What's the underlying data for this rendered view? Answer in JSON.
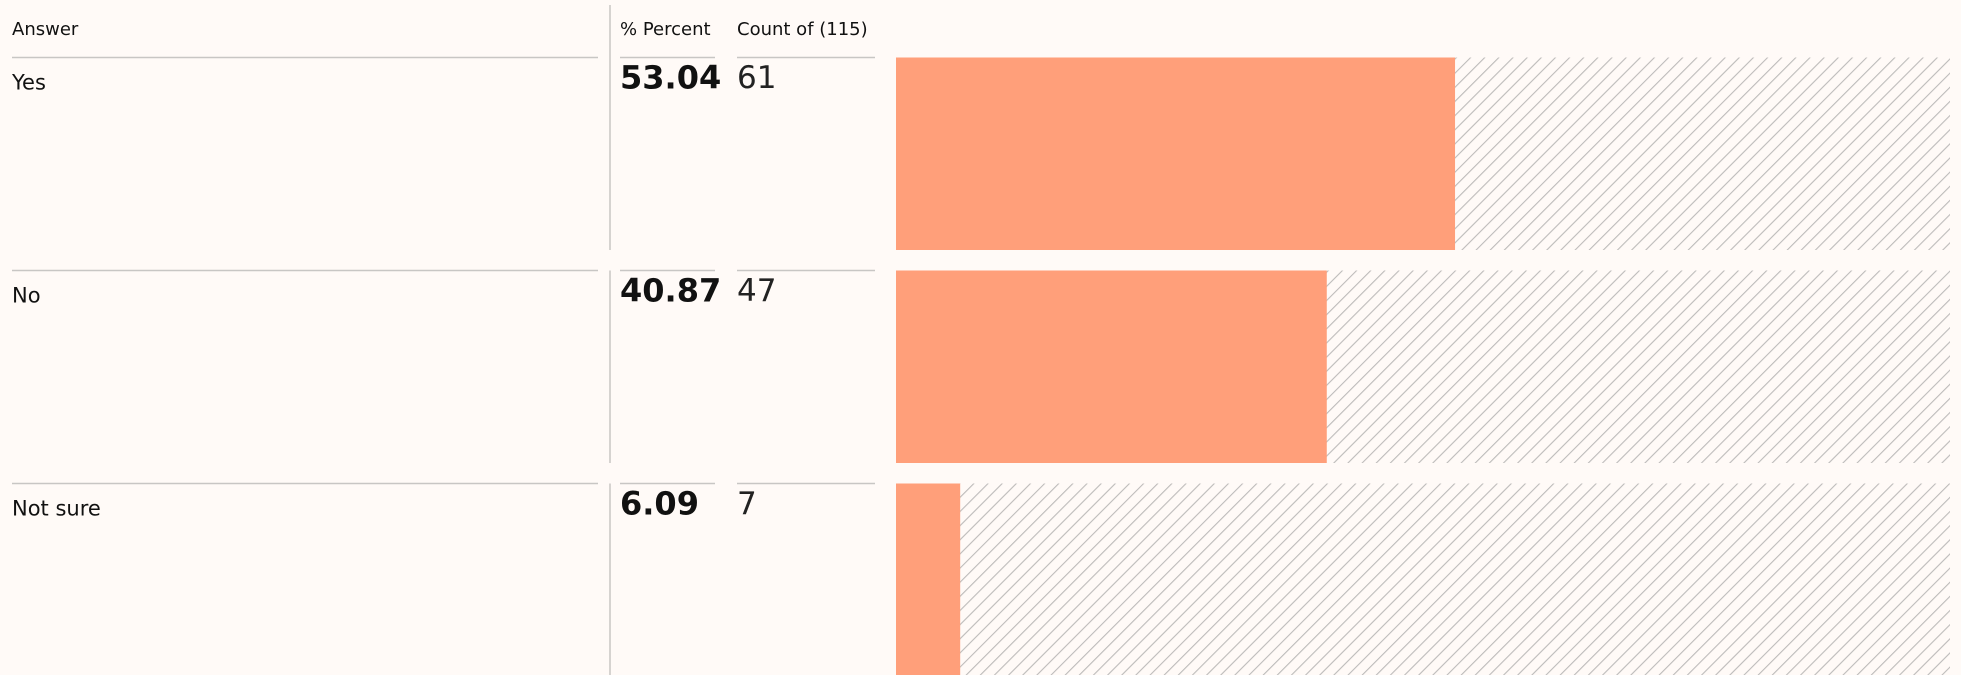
{
  "header": {
    "answer": "Answer",
    "percent": "% Percent",
    "count": "Count of (115)"
  },
  "rows": [
    {
      "answer": "Yes",
      "percent": 53.04,
      "count": 61
    },
    {
      "answer": "No",
      "percent": 40.87,
      "count": 47
    },
    {
      "answer": "Not sure",
      "percent": 6.09,
      "count": 7
    }
  ]
}
